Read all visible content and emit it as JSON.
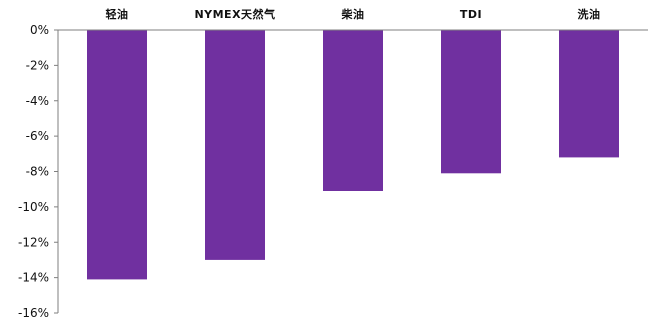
{
  "chart_data": {
    "type": "bar",
    "title": "",
    "xlabel": "",
    "ylabel": "",
    "categories": [
      "轻油",
      "NYMEX天然气",
      "柴油",
      "TDI",
      "洗油"
    ],
    "values": [
      -14.1,
      -13.0,
      -9.1,
      -8.1,
      -7.2
    ],
    "ylim": [
      -16,
      0
    ],
    "yticks": [
      0,
      -2,
      -4,
      -6,
      -8,
      -10,
      -12,
      -14,
      -16
    ],
    "ytick_labels": [
      "0%",
      "-2%",
      "-4%",
      "-6%",
      "-8%",
      "-10%",
      "-12%",
      "-14%",
      "-16%"
    ],
    "x_axis_position": "top",
    "grid": false,
    "legend": "none",
    "bar_color": "#7030a0"
  }
}
